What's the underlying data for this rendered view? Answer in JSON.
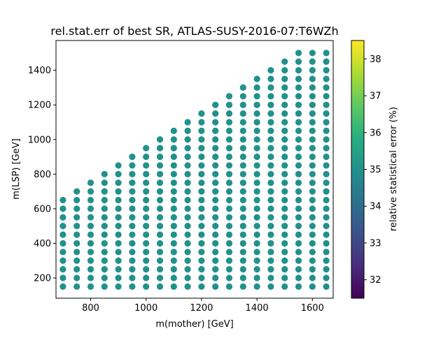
{
  "chart_data": {
    "type": "scatter",
    "title": "rel.stat.err of best SR, ATLAS-SUSY-2016-07:T6WZh",
    "xlabel": "m(mother) [GeV]",
    "ylabel": "m(LSP) [GeV]",
    "xlim": [
      675,
      1675
    ],
    "ylim": [
      83,
      1572
    ],
    "xticks": [
      800,
      1000,
      1200,
      1400,
      1600
    ],
    "yticks": [
      200,
      400,
      600,
      800,
      1000,
      1200,
      1400
    ],
    "grid": false,
    "point_color": "#21918c",
    "grid_spec": {
      "x_values": [
        700,
        750,
        800,
        850,
        900,
        950,
        1000,
        1050,
        1100,
        1150,
        1200,
        1250,
        1300,
        1350,
        1400,
        1450,
        1500,
        1550,
        1600,
        1650
      ],
      "y_min": 150,
      "y_step": 50,
      "y_max_by_x": [
        650,
        700,
        750,
        800,
        850,
        900,
        950,
        1000,
        1050,
        1100,
        1150,
        1200,
        1250,
        1300,
        1350,
        1400,
        1450,
        1500,
        1500,
        1500
      ],
      "value_all_points": 35.0
    },
    "colorbar": {
      "label": "relative statistical error (%)",
      "range": [
        31.5,
        38.5
      ],
      "ticks": [
        32,
        33,
        34,
        35,
        36,
        37,
        38
      ],
      "colormap": "viridis"
    }
  }
}
